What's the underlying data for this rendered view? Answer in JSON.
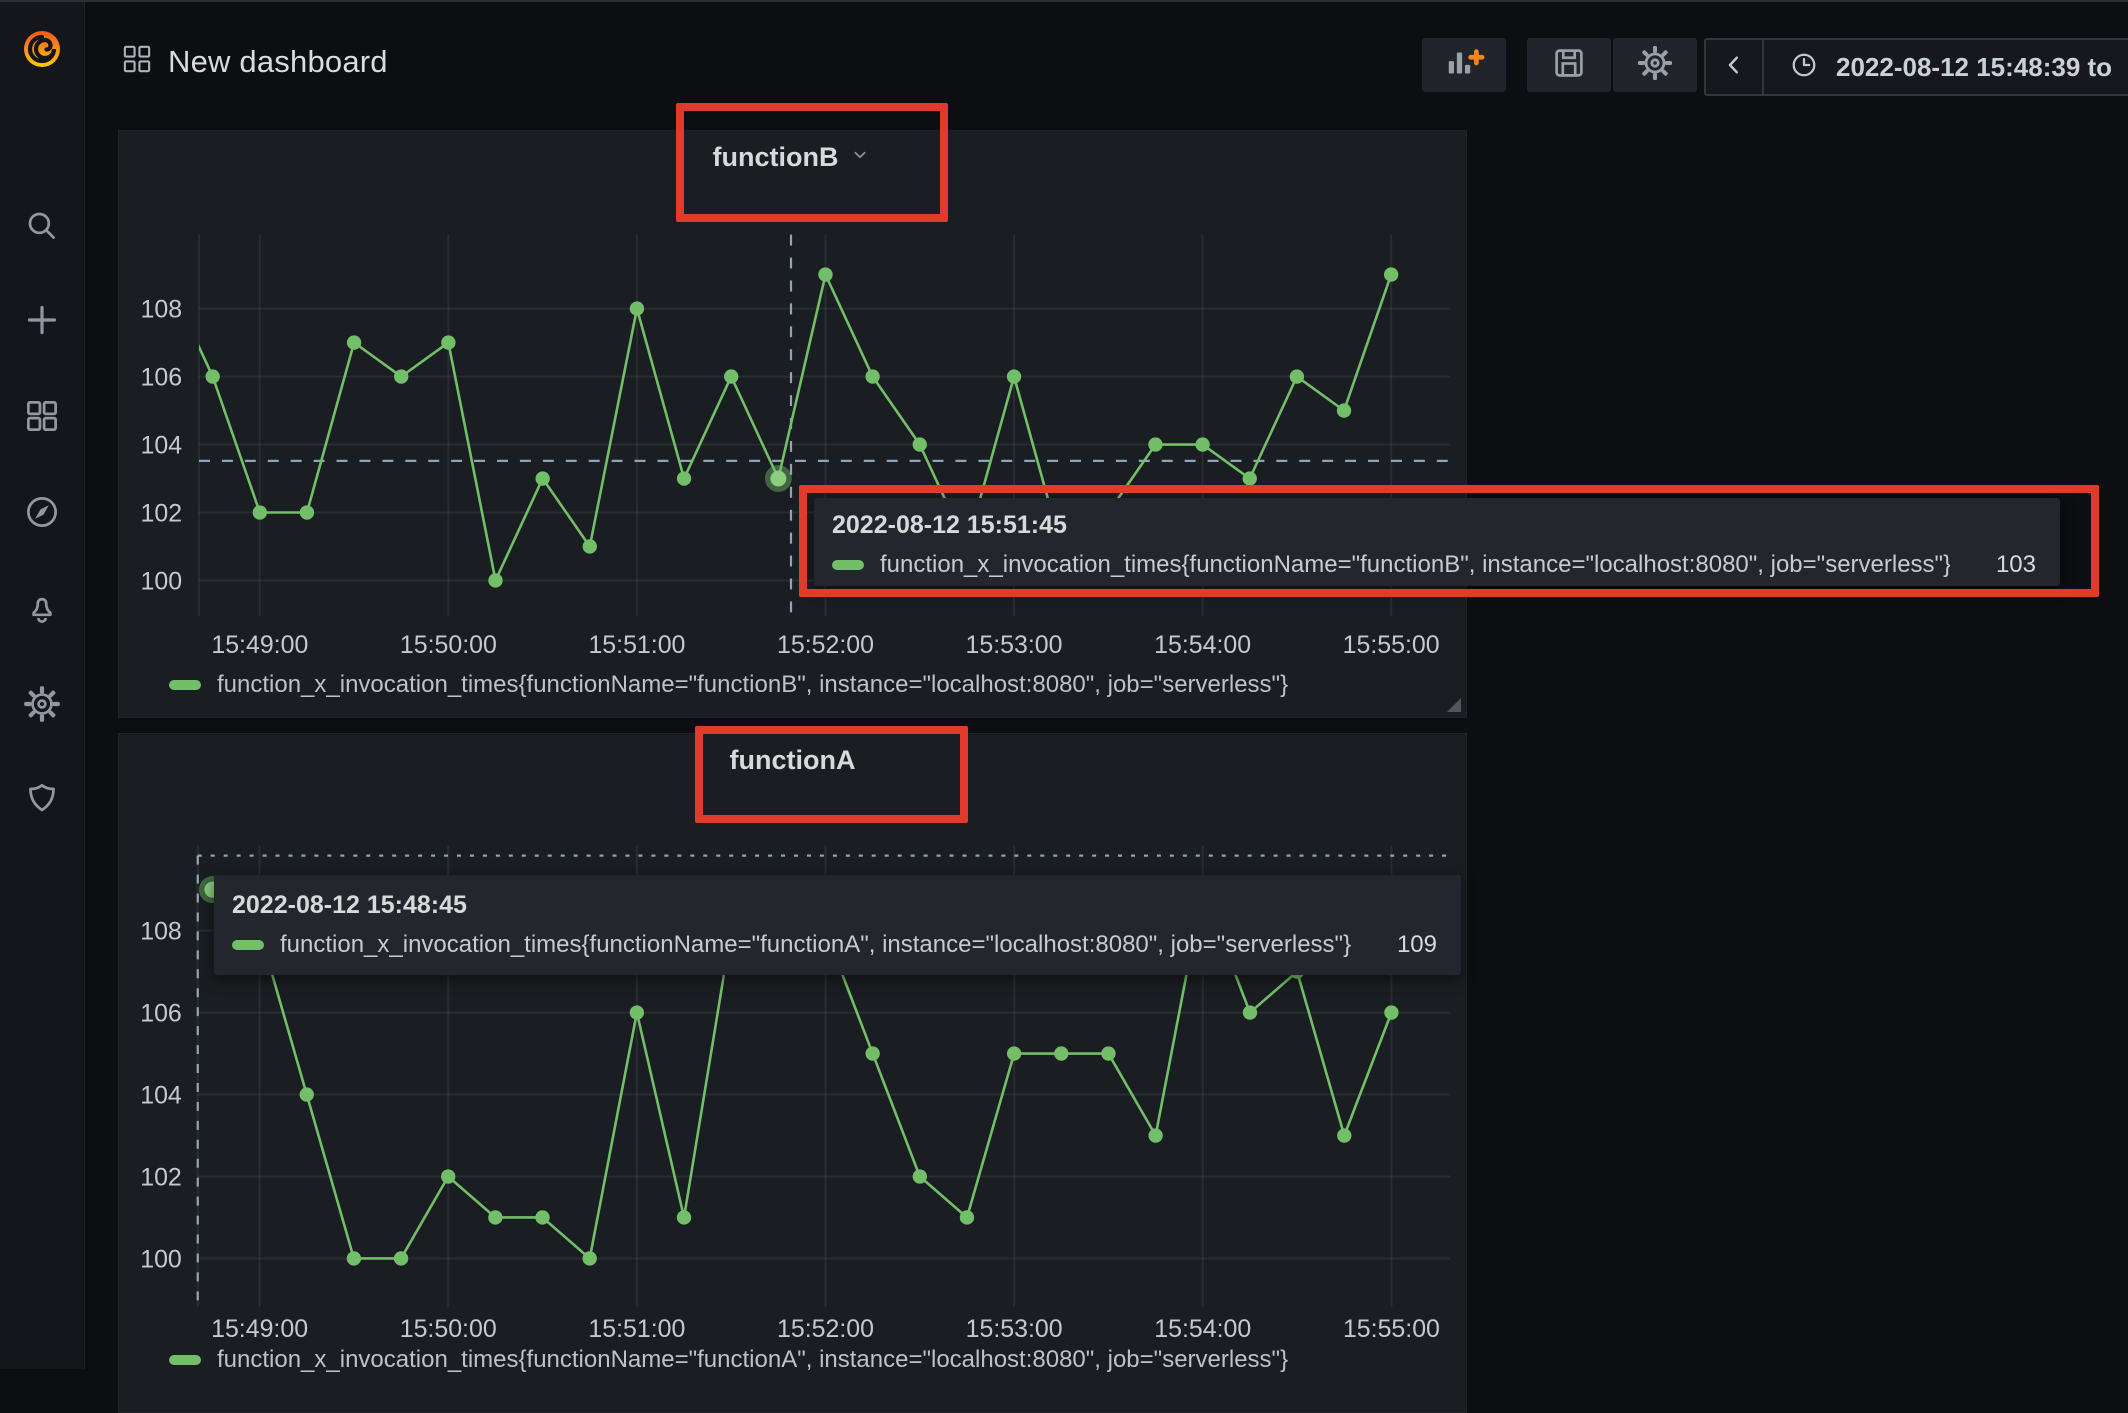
{
  "header": {
    "title": "New dashboard"
  },
  "toolbar": {
    "time_range": "2022-08-12 15:48:39 to",
    "buttons": [
      "add-panel",
      "save-dashboard",
      "dashboard-settings",
      "time-shift-back",
      "time-picker"
    ]
  },
  "sidebar": {
    "icons": [
      "grafana-logo",
      "search",
      "create",
      "dashboards",
      "explore",
      "alerting",
      "configuration",
      "server-admin"
    ]
  },
  "panels": {
    "functionB": {
      "title": "functionB",
      "legend": "function_x_invocation_times{functionName=\"functionB\", instance=\"localhost:8080\", job=\"serverless\"}",
      "tooltip": {
        "timestamp": "2022-08-12 15:51:45",
        "series": "function_x_invocation_times{functionName=\"functionB\", instance=\"localhost:8080\", job=\"serverless\"}",
        "value": "103"
      }
    },
    "functionA": {
      "title": "functionA",
      "legend": "function_x_invocation_times{functionName=\"functionA\", instance=\"localhost:8080\", job=\"serverless\"}",
      "tooltip": {
        "timestamp": "2022-08-12 15:48:45",
        "series": "function_x_invocation_times{functionName=\"functionA\", instance=\"localhost:8080\", job=\"serverless\"}",
        "value": "109"
      }
    }
  },
  "chart_data": [
    {
      "id": "functionB",
      "type": "line",
      "title": "functionB",
      "x": [
        "15:48:30",
        "15:48:45",
        "15:49:00",
        "15:49:15",
        "15:49:30",
        "15:49:45",
        "15:50:00",
        "15:50:15",
        "15:50:30",
        "15:50:45",
        "15:51:00",
        "15:51:15",
        "15:51:30",
        "15:51:45",
        "15:52:00",
        "15:52:15",
        "15:52:30",
        "15:52:45",
        "15:53:00",
        "15:53:15",
        "15:53:30",
        "15:53:45",
        "15:54:00",
        "15:54:15",
        "15:54:30",
        "15:54:45",
        "15:55:00"
      ],
      "series": [
        {
          "name": "function_x_invocation_times{functionName=\"functionB\", instance=\"localhost:8080\", job=\"serverless\"}",
          "color": "#73bf69",
          "values": [
            109,
            106,
            102,
            102,
            107,
            106,
            107,
            100,
            103,
            101,
            108,
            103,
            106,
            103,
            109,
            106,
            104,
            101,
            106,
            101,
            102,
            104,
            104,
            103,
            106,
            105,
            109
          ]
        }
      ],
      "yticks": [
        100,
        102,
        104,
        106,
        108
      ],
      "xticks": [
        "15:49:00",
        "15:50:00",
        "15:51:00",
        "15:52:00",
        "15:53:00",
        "15:54:00",
        "15:55:00"
      ],
      "ylim": [
        99.3,
        110.3
      ],
      "grid": true,
      "legend_position": "bottom",
      "hover": {
        "x": "15:51:45",
        "value": 103
      }
    },
    {
      "id": "functionA",
      "type": "line",
      "title": "functionA",
      "x": [
        "15:48:45",
        "15:49:00",
        "15:49:15",
        "15:49:30",
        "15:49:45",
        "15:50:00",
        "15:50:15",
        "15:50:30",
        "15:50:45",
        "15:51:00",
        "15:51:15",
        "15:51:30",
        "15:51:45",
        "15:52:00",
        "15:52:15",
        "15:52:30",
        "15:52:45",
        "15:53:00",
        "15:53:15",
        "15:53:30",
        "15:53:45",
        "15:54:00",
        "15:54:15",
        "15:54:30",
        "15:54:45",
        "15:55:00"
      ],
      "series": [
        {
          "name": "function_x_invocation_times{functionName=\"functionA\", instance=\"localhost:8080\", job=\"serverless\"}",
          "color": "#73bf69",
          "values": [
            109,
            108,
            104,
            100,
            100,
            102,
            101,
            101,
            100,
            106,
            101,
            108,
            109,
            108,
            105,
            102,
            101,
            105,
            105,
            105,
            103,
            109,
            106,
            107,
            103,
            106
          ]
        }
      ],
      "yticks": [
        100,
        102,
        104,
        106,
        108
      ],
      "xticks": [
        "15:49:00",
        "15:50:00",
        "15:51:00",
        "15:52:00",
        "15:53:00",
        "15:54:00",
        "15:55:00"
      ],
      "ylim": [
        99.2,
        110.5
      ],
      "grid": true,
      "legend_position": "bottom",
      "hover": {
        "x": "15:48:45",
        "value": 109
      }
    }
  ]
}
